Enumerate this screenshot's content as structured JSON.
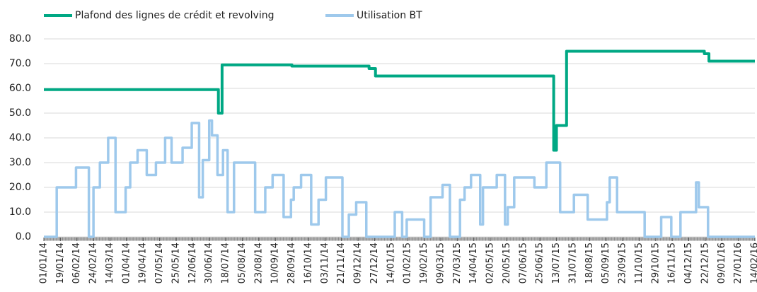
{
  "chart_data": {
    "type": "line",
    "step": true,
    "xlim": [
      "01/01/14",
      "14/02/16"
    ],
    "xticks": [
      "01/01/14",
      "19/01/14",
      "06/02/14",
      "24/02/14",
      "14/03/14",
      "01/04/14",
      "19/04/14",
      "07/05/14",
      "25/05/14",
      "12/06/14",
      "30/06/14",
      "18/07/14",
      "05/08/14",
      "23/08/14",
      "10/09/14",
      "28/09/14",
      "16/10/14",
      "03/11/14",
      "21/11/14",
      "09/12/14",
      "27/12/14",
      "14/01/15",
      "01/02/15",
      "19/02/15",
      "09/03/15",
      "27/03/15",
      "14/04/15",
      "02/05/15",
      "20/05/15",
      "07/06/15",
      "25/06/15",
      "13/07/15",
      "31/07/15",
      "18/08/15",
      "05/09/15",
      "23/09/15",
      "11/10/15",
      "29/10/15",
      "16/11/15",
      "04/12/15",
      "22/12/15",
      "09/01/16",
      "27/01/16",
      "14/02/16"
    ],
    "ylim": [
      0,
      80
    ],
    "yticks": [
      {
        "value": 0,
        "label": "0.0"
      },
      {
        "value": 10,
        "label": "10.0"
      },
      {
        "value": 20,
        "label": "20.0"
      },
      {
        "value": 30,
        "label": "30.0"
      },
      {
        "value": 40,
        "label": "40.0"
      },
      {
        "value": 50,
        "label": "50.0"
      },
      {
        "value": 60,
        "label": "60.0"
      },
      {
        "value": 70,
        "label": "70.0"
      },
      {
        "value": 80,
        "label": "80.0"
      }
    ],
    "grid": true,
    "legend": "top",
    "series": [
      {
        "name": "Plafond des lignes de crédit et revolving",
        "color": "#00a884",
        "x": [
          "01/01/14",
          "10/07/14",
          "14/07/14",
          "28/09/14",
          "21/12/14",
          "28/12/14",
          "10/07/15",
          "13/07/15",
          "24/07/15",
          "21/12/15",
          "26/12/15",
          "14/02/16"
        ],
        "values": [
          59.5,
          50,
          69.5,
          69,
          68,
          65,
          35,
          45,
          75,
          74,
          71,
          71
        ]
      },
      {
        "name": "Utilisation BT",
        "color": "#9ec9ec",
        "x": [
          "01/01/14",
          "15/01/14",
          "05/02/14",
          "19/02/14",
          "24/02/14",
          "03/03/14",
          "12/03/14",
          "20/03/14",
          "31/03/14",
          "05/04/14",
          "13/04/14",
          "23/04/14",
          "03/05/14",
          "13/05/14",
          "20/05/14",
          "01/06/14",
          "11/06/14",
          "19/06/14",
          "23/06/14",
          "30/06/14",
          "03/07/14",
          "09/07/14",
          "15/07/14",
          "20/07/14",
          "27/07/14",
          "19/08/14",
          "30/08/14",
          "07/09/14",
          "19/09/14",
          "27/09/14",
          "30/09/14",
          "08/10/14",
          "19/10/14",
          "27/10/14",
          "04/11/14",
          "22/11/14",
          "29/11/14",
          "07/12/14",
          "18/12/14",
          "18/01/15",
          "26/01/15",
          "31/01/15",
          "19/02/15",
          "26/02/15",
          "11/03/15",
          "19/03/15",
          "30/03/15",
          "04/04/15",
          "11/04/15",
          "21/04/15",
          "24/04/15",
          "09/05/15",
          "18/05/15",
          "21/05/15",
          "28/05/15",
          "19/06/15",
          "02/07/15",
          "17/07/15",
          "01/08/15",
          "16/08/15",
          "06/09/15",
          "09/09/15",
          "17/09/15",
          "17/10/15",
          "04/11/15",
          "15/11/15",
          "25/11/15",
          "12/12/15",
          "15/12/15",
          "25/12/15",
          "14/02/16"
        ],
        "values": [
          0,
          20,
          28,
          0,
          20,
          30,
          40,
          10,
          20,
          30,
          35,
          25,
          30,
          40,
          30,
          36,
          46,
          16,
          31,
          47,
          41,
          25,
          35,
          10,
          30,
          10,
          20,
          25,
          8,
          15,
          20,
          25,
          5,
          15,
          24,
          0,
          9,
          14,
          0,
          10,
          0,
          7,
          0,
          16,
          21,
          0,
          15,
          20,
          25,
          5,
          20,
          25,
          5,
          12,
          24,
          20,
          30,
          10,
          17,
          7,
          14,
          24,
          10,
          0,
          8,
          0,
          10,
          22,
          12,
          0,
          0
        ]
      }
    ]
  }
}
